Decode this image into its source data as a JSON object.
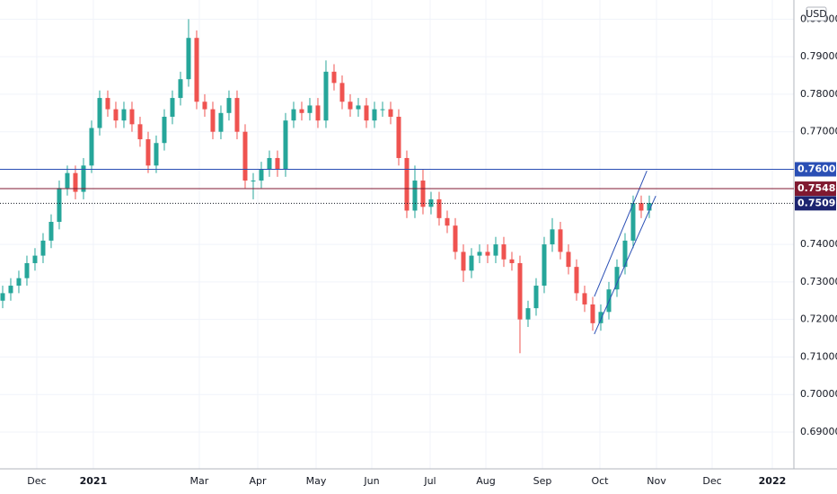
{
  "chart_data": {
    "type": "candlestick",
    "currency": "USD",
    "up_color": "#26a69a",
    "down_color": "#ef5350",
    "open": [
      0.725,
      0.727,
      0.729,
      0.731,
      0.735,
      0.737,
      0.741,
      0.746,
      0.755,
      0.759,
      0.754,
      0.761,
      0.771,
      0.779,
      0.776,
      0.773,
      0.776,
      0.772,
      0.768,
      0.761,
      0.767,
      0.774,
      0.779,
      0.784,
      0.795,
      0.778,
      0.776,
      0.77,
      0.775,
      0.779,
      0.77,
      0.757,
      0.757,
      0.76,
      0.763,
      0.76,
      0.773,
      0.776,
      0.775,
      0.777,
      0.773,
      0.786,
      0.783,
      0.778,
      0.776,
      0.777,
      0.773,
      0.776,
      0.776,
      0.774,
      0.763,
      0.749,
      0.757,
      0.75,
      0.752,
      0.747,
      0.745,
      0.738,
      0.733,
      0.737,
      0.738,
      0.737,
      0.74,
      0.736,
      0.735,
      0.72,
      0.723,
      0.729,
      0.74,
      0.744,
      0.738,
      0.734,
      0.727,
      0.724,
      0.719,
      0.722,
      0.728,
      0.734,
      0.741,
      0.751,
      0.749
    ],
    "high": [
      0.729,
      0.731,
      0.733,
      0.737,
      0.739,
      0.743,
      0.748,
      0.757,
      0.761,
      0.761,
      0.763,
      0.773,
      0.781,
      0.781,
      0.778,
      0.778,
      0.778,
      0.774,
      0.77,
      0.769,
      0.776,
      0.781,
      0.786,
      0.8,
      0.797,
      0.78,
      0.778,
      0.777,
      0.781,
      0.781,
      0.772,
      0.759,
      0.762,
      0.765,
      0.765,
      0.775,
      0.778,
      0.778,
      0.779,
      0.779,
      0.789,
      0.788,
      0.785,
      0.78,
      0.779,
      0.779,
      0.778,
      0.778,
      0.778,
      0.776,
      0.765,
      0.761,
      0.76,
      0.754,
      0.754,
      0.749,
      0.747,
      0.74,
      0.739,
      0.74,
      0.74,
      0.742,
      0.742,
      0.738,
      0.737,
      0.725,
      0.731,
      0.742,
      0.747,
      0.746,
      0.74,
      0.736,
      0.729,
      0.726,
      0.724,
      0.73,
      0.736,
      0.743,
      0.753,
      0.753,
      0.753
    ],
    "low": [
      0.723,
      0.725,
      0.727,
      0.729,
      0.733,
      0.735,
      0.739,
      0.744,
      0.753,
      0.752,
      0.752,
      0.759,
      0.769,
      0.774,
      0.771,
      0.771,
      0.77,
      0.766,
      0.759,
      0.759,
      0.765,
      0.772,
      0.777,
      0.782,
      0.776,
      0.774,
      0.768,
      0.768,
      0.773,
      0.768,
      0.755,
      0.752,
      0.755,
      0.758,
      0.758,
      0.758,
      0.771,
      0.773,
      0.773,
      0.771,
      0.771,
      0.781,
      0.776,
      0.774,
      0.774,
      0.771,
      0.771,
      0.774,
      0.772,
      0.761,
      0.747,
      0.747,
      0.748,
      0.748,
      0.745,
      0.743,
      0.736,
      0.73,
      0.731,
      0.735,
      0.735,
      0.735,
      0.734,
      0.733,
      0.711,
      0.718,
      0.721,
      0.727,
      0.738,
      0.736,
      0.732,
      0.725,
      0.722,
      0.717,
      0.717,
      0.72,
      0.726,
      0.732,
      0.739,
      0.747,
      0.747
    ],
    "close": [
      0.727,
      0.729,
      0.731,
      0.735,
      0.737,
      0.741,
      0.746,
      0.755,
      0.759,
      0.754,
      0.761,
      0.771,
      0.779,
      0.776,
      0.773,
      0.776,
      0.772,
      0.768,
      0.761,
      0.767,
      0.774,
      0.779,
      0.784,
      0.795,
      0.778,
      0.776,
      0.77,
      0.775,
      0.779,
      0.77,
      0.757,
      0.757,
      0.76,
      0.763,
      0.76,
      0.773,
      0.776,
      0.775,
      0.777,
      0.773,
      0.786,
      0.783,
      0.778,
      0.776,
      0.777,
      0.773,
      0.776,
      0.776,
      0.774,
      0.763,
      0.749,
      0.757,
      0.75,
      0.752,
      0.747,
      0.745,
      0.738,
      0.733,
      0.737,
      0.738,
      0.737,
      0.74,
      0.736,
      0.735,
      0.72,
      0.723,
      0.729,
      0.74,
      0.744,
      0.738,
      0.734,
      0.727,
      0.724,
      0.719,
      0.722,
      0.728,
      0.734,
      0.741,
      0.751,
      0.749,
      0.751
    ],
    "ylim": [
      0.6802,
      0.8051
    ],
    "yticks": [
      {
        "value": 0.69,
        "label": "0.69000"
      },
      {
        "value": 0.7,
        "label": "0.70000"
      },
      {
        "value": 0.71,
        "label": "0.71000"
      },
      {
        "value": 0.72,
        "label": "0.72000"
      },
      {
        "value": 0.73,
        "label": "0.73000"
      },
      {
        "value": 0.74,
        "label": "0.74000"
      },
      {
        "value": 0.77,
        "label": "0.77000"
      },
      {
        "value": 0.78,
        "label": "0.78000"
      },
      {
        "value": 0.79,
        "label": "0.79000"
      },
      {
        "value": 0.8,
        "label": "0.80000"
      }
    ],
    "xlim": [
      -0.33,
      97.89
    ],
    "xticks": [
      {
        "value": 4.22,
        "label": "Dec"
      },
      {
        "value": 11.22,
        "label": "2021"
      },
      {
        "value": 24.33,
        "label": "Mar"
      },
      {
        "value": 31.56,
        "label": "Apr"
      },
      {
        "value": 38.78,
        "label": "May"
      },
      {
        "value": 45.67,
        "label": "Jun"
      },
      {
        "value": 52.89,
        "label": "Jul"
      },
      {
        "value": 59.78,
        "label": "Aug"
      },
      {
        "value": 66.78,
        "label": "Sep"
      },
      {
        "value": 73.89,
        "label": "Oct"
      },
      {
        "value": 80.89,
        "label": "Nov"
      },
      {
        "value": 87.78,
        "label": "Dec"
      },
      {
        "value": 95.22,
        "label": "2022"
      }
    ],
    "grid": true,
    "price_lines": [
      {
        "value": 0.76,
        "label": "0.76000",
        "color": "#2a4fb5",
        "style": "solid"
      },
      {
        "value": 0.75484,
        "label": "0.75484",
        "color": "#801930",
        "style": "solid"
      },
      {
        "value": 0.75094,
        "label": "0.75094",
        "color": "#1c2470",
        "style": "dotted"
      }
    ],
    "trendlines": [
      {
        "x": [
          73.2,
          79.7
        ],
        "y": [
          0.7261,
          0.7596
        ],
        "color": "#2a4fb5"
      },
      {
        "x": [
          73.2,
          80.8
        ],
        "y": [
          0.7161,
          0.7529
        ],
        "color": "#2a4fb5"
      }
    ]
  }
}
